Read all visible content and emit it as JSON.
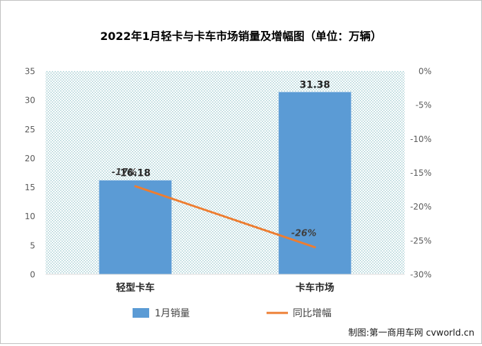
{
  "chart_data": {
    "type": "bar+line",
    "title": "2022年1月轻卡与卡车市场销量及增幅图（单位：万辆）",
    "categories": [
      "轻型卡车",
      "卡车市场"
    ],
    "series": [
      {
        "name": "1月销量",
        "type": "bar",
        "axis": "left",
        "values": [
          16.18,
          31.38
        ],
        "labels": [
          "16.18",
          "31.38"
        ],
        "color": "#5b9bd5"
      },
      {
        "name": "同比增幅",
        "type": "line",
        "axis": "right",
        "values": [
          -17,
          -26
        ],
        "labels": [
          "-17%",
          "-26%"
        ],
        "color": "#ed7d31"
      }
    ],
    "y_left": {
      "min": 0,
      "max": 35,
      "ticks": [
        0,
        5,
        10,
        15,
        20,
        25,
        30,
        35
      ],
      "tick_labels": [
        "0",
        "5",
        "10",
        "15",
        "20",
        "25",
        "30",
        "35"
      ]
    },
    "y_right": {
      "min": -30,
      "max": 0,
      "ticks": [
        0,
        -5,
        -10,
        -15,
        -20,
        -25,
        -30
      ],
      "tick_labels": [
        "0%",
        "-5%",
        "-10%",
        "-15%",
        "-20%",
        "-25%",
        "-30%"
      ]
    },
    "legend_position": "bottom",
    "plot_background": "dotted pattern"
  },
  "footer": {
    "credit": "制图:第一商用车网 cvworld.cn"
  }
}
